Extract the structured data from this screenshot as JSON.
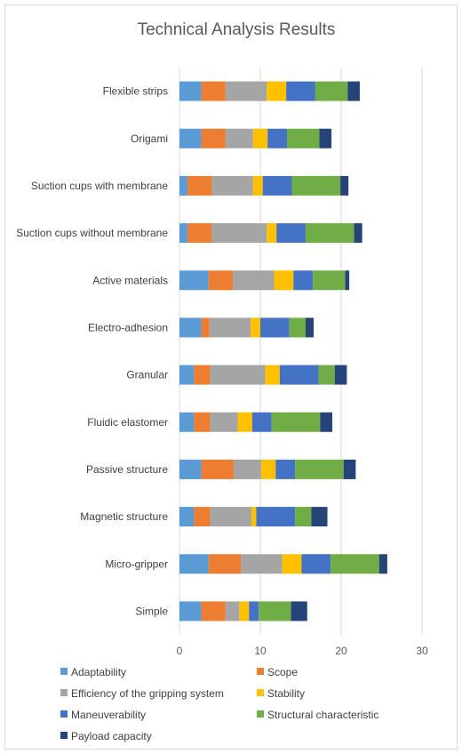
{
  "chart_data": {
    "type": "bar",
    "orientation": "horizontal",
    "stacked": true,
    "title": "Technical Analysis Results",
    "xlabel": "",
    "ylabel": "",
    "xlim": [
      0,
      30
    ],
    "x_ticks": [
      0,
      10,
      20,
      30
    ],
    "grid": true,
    "legend_position": "bottom",
    "categories": [
      "Flexible strips",
      "Origami",
      "Suction cups with membrane",
      "Suction cups without membrane",
      "Active materials",
      "Electro-adhesion",
      "Granular",
      "Fluidic elastomer",
      "Passive structure",
      "Magnetic structure",
      "Micro-gripper",
      "Simple"
    ],
    "series": [
      {
        "name": "Adaptability",
        "color": "#5b9bd5",
        "values": [
          2.7,
          2.7,
          1.0,
          1.0,
          3.6,
          2.7,
          1.8,
          1.8,
          2.7,
          1.8,
          3.6,
          2.7
        ]
      },
      {
        "name": "Scope",
        "color": "#ed7d31",
        "values": [
          3.0,
          3.0,
          3.0,
          3.0,
          3.0,
          1.0,
          2.0,
          2.0,
          4.0,
          2.0,
          4.0,
          3.0
        ]
      },
      {
        "name": "Efficiency of the gripping system",
        "color": "#a5a5a5",
        "values": [
          5.1,
          3.4,
          5.1,
          6.8,
          5.1,
          5.1,
          6.8,
          3.4,
          3.4,
          5.1,
          5.1,
          1.7
        ]
      },
      {
        "name": "Stability",
        "color": "#ffc000",
        "values": [
          2.4,
          1.8,
          1.2,
          1.2,
          2.4,
          1.2,
          1.8,
          1.8,
          1.8,
          0.6,
          2.4,
          1.2
        ]
      },
      {
        "name": "Maneuverability",
        "color": "#4472c4",
        "values": [
          3.6,
          2.4,
          3.6,
          3.6,
          2.4,
          3.6,
          4.8,
          2.4,
          2.4,
          4.8,
          3.6,
          1.2
        ]
      },
      {
        "name": "Structural characteristic",
        "color": "#70ad47",
        "values": [
          4.0,
          4.0,
          6.0,
          6.0,
          4.0,
          2.0,
          2.0,
          6.0,
          6.0,
          2.0,
          6.0,
          4.0
        ]
      },
      {
        "name": "Payload capacity",
        "color": "#264478",
        "values": [
          1.5,
          1.5,
          1.0,
          1.0,
          0.5,
          1.0,
          1.5,
          1.5,
          1.5,
          2.0,
          1.0,
          2.0
        ]
      }
    ]
  }
}
